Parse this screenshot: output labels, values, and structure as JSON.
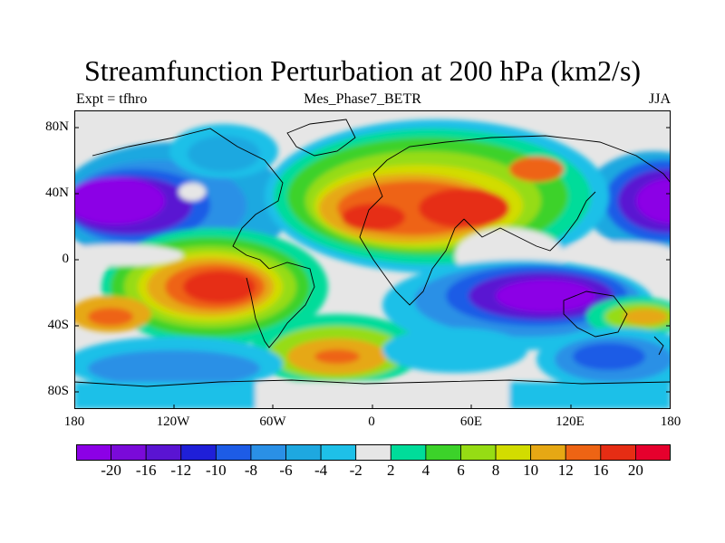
{
  "title": "Streamfunction Perturbation at 200 hPa (km2/s)",
  "left_label": "Expt = tfhro",
  "center_label": "Mes_Phase7_BETR",
  "right_label": "JJA",
  "axes": {
    "y_ticks": [
      "80N",
      "40N",
      "0",
      "40S",
      "80S"
    ],
    "x_ticks": [
      "180",
      "120W",
      "60W",
      "0",
      "60E",
      "120E",
      "180"
    ]
  },
  "colorbar": {
    "colors": [
      "#8c00e6",
      "#7a0ad9",
      "#5a14d2",
      "#1f1fd8",
      "#1d5ce6",
      "#2a90e6",
      "#1ea8e0",
      "#1ec0e8",
      "#e6e6e6",
      "#00dc9a",
      "#3cd22a",
      "#96dc14",
      "#d2dc00",
      "#e6a814",
      "#ee6414",
      "#e62d14",
      "#e6002d"
    ],
    "labels": [
      "-20",
      "-16",
      "-12",
      "-10",
      "-8",
      "-6",
      "-4",
      "-2",
      "2",
      "4",
      "6",
      "8",
      "10",
      "12",
      "16",
      "20"
    ]
  }
}
